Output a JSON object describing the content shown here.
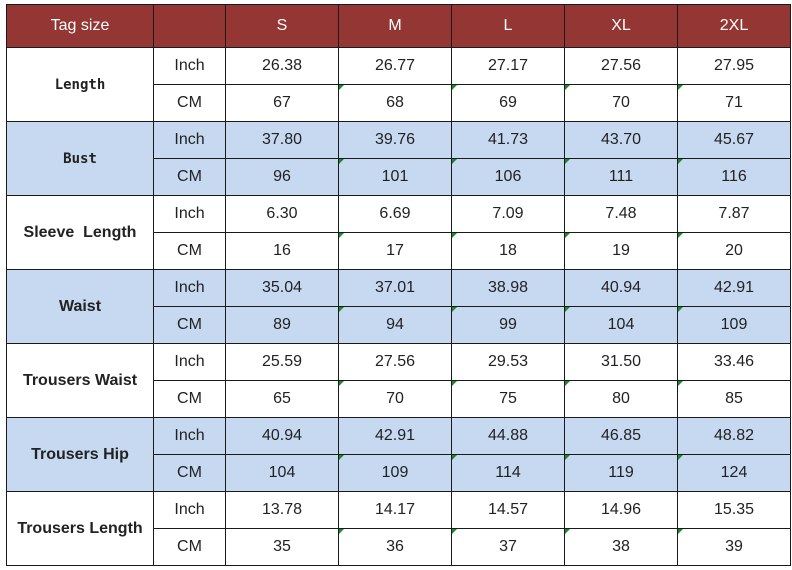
{
  "header": {
    "tag_label": "Tag size",
    "sizes": [
      "S",
      "M",
      "L",
      "XL",
      "2XL"
    ]
  },
  "colors": {
    "header_bg": "#943634",
    "shaded_row_bg": "#c6d9f1",
    "marker": "#1a8a2a"
  },
  "measurements": [
    {
      "label": "Length",
      "shaded": false,
      "rows": [
        {
          "unit": "Inch",
          "values": [
            "26.38",
            "26.77",
            "27.17",
            "27.56",
            "27.95"
          ]
        },
        {
          "unit": "CM",
          "values": [
            "67",
            "68",
            "69",
            "70",
            "71"
          ]
        }
      ]
    },
    {
      "label": "Bust",
      "shaded": true,
      "rows": [
        {
          "unit": "Inch",
          "values": [
            "37.80",
            "39.76",
            "41.73",
            "43.70",
            "45.67"
          ]
        },
        {
          "unit": "CM",
          "values": [
            "96",
            "101",
            "106",
            "111",
            "116"
          ]
        }
      ]
    },
    {
      "label": "Sleeve  Length",
      "shaded": false,
      "rows": [
        {
          "unit": "Inch",
          "values": [
            "6.30",
            "6.69",
            "7.09",
            "7.48",
            "7.87"
          ]
        },
        {
          "unit": "CM",
          "values": [
            "16",
            "17",
            "18",
            "19",
            "20"
          ]
        }
      ]
    },
    {
      "label": "Waist",
      "shaded": true,
      "rows": [
        {
          "unit": "Inch",
          "values": [
            "35.04",
            "37.01",
            "38.98",
            "40.94",
            "42.91"
          ]
        },
        {
          "unit": "CM",
          "values": [
            "89",
            "94",
            "99",
            "104",
            "109"
          ]
        }
      ]
    },
    {
      "label": "Trousers Waist",
      "shaded": false,
      "rows": [
        {
          "unit": "Inch",
          "values": [
            "25.59",
            "27.56",
            "29.53",
            "31.50",
            "33.46"
          ]
        },
        {
          "unit": "CM",
          "values": [
            "65",
            "70",
            "75",
            "80",
            "85"
          ]
        }
      ]
    },
    {
      "label": "Trousers Hip",
      "shaded": true,
      "rows": [
        {
          "unit": "Inch",
          "values": [
            "40.94",
            "42.91",
            "44.88",
            "46.85",
            "48.82"
          ]
        },
        {
          "unit": "CM",
          "values": [
            "104",
            "109",
            "114",
            "119",
            "124"
          ]
        }
      ]
    },
    {
      "label": "Trousers Length",
      "shaded": false,
      "rows": [
        {
          "unit": "Inch",
          "values": [
            "13.78",
            "14.17",
            "14.57",
            "14.96",
            "15.35"
          ]
        },
        {
          "unit": "CM",
          "values": [
            "35",
            "36",
            "37",
            "38",
            "39"
          ]
        }
      ]
    }
  ]
}
